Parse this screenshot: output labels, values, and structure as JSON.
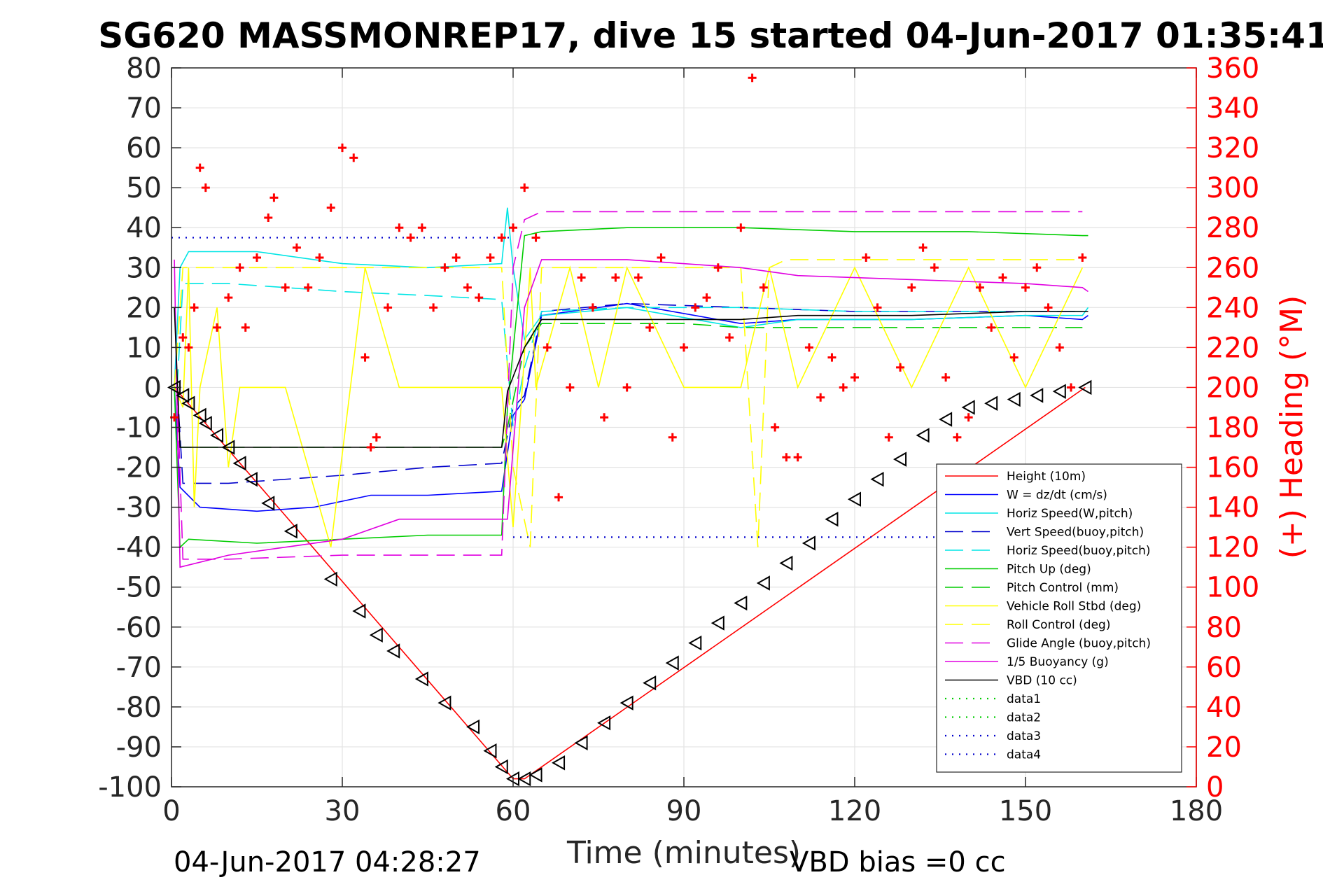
{
  "chart_data": {
    "type": "line",
    "title": "SG620 MASSMONREP17, dive 15 started 04-Jun-2017 01:35:41",
    "xlabel": "Time (minutes)",
    "ylabel_right": "(+) Heading (°M)",
    "xlim": [
      0,
      180
    ],
    "ylim_left": [
      -100,
      80
    ],
    "ylim_right": [
      0,
      360
    ],
    "x_ticks": [
      "0",
      "30",
      "60",
      "90",
      "120",
      "150",
      "180"
    ],
    "y_left_ticks": [
      "80",
      "70",
      "60",
      "50",
      "40",
      "30",
      "20",
      "10",
      "0",
      "-10",
      "-20",
      "-30",
      "-40",
      "-50",
      "-60",
      "-70",
      "-80",
      "-90",
      "-100"
    ],
    "y_right_ticks": [
      "360",
      "340",
      "320",
      "300",
      "280",
      "260",
      "240",
      "220",
      "200",
      "180",
      "160",
      "140",
      "120",
      "100",
      "80",
      "60",
      "40",
      "20",
      "0"
    ],
    "grid": true,
    "legend_position": "lower-right",
    "footer_left": "04-Jun-2017 04:28:27",
    "footer_right": "VBD bias =0 cc",
    "series": [
      {
        "name": "Height (10m)",
        "color": "#ff0000",
        "style": "solid",
        "x": [
          0.5,
          60,
          62,
          160.5
        ],
        "y": [
          0,
          -98,
          -98,
          0
        ]
      },
      {
        "name": "W = dz/dt (cm/s)",
        "color": "#0000ff",
        "style": "solid",
        "x": [
          0.5,
          1.5,
          5,
          15,
          25,
          35,
          45,
          58,
          60,
          62,
          65,
          80,
          100,
          110,
          130,
          150,
          160,
          161
        ],
        "y": [
          0,
          -25,
          -30,
          -31,
          -30,
          -27,
          -27,
          -26,
          -7,
          -3,
          18,
          21,
          16,
          17,
          17,
          18,
          17,
          18
        ]
      },
      {
        "name": "Horiz Speed(W,pitch)",
        "color": "#00e5e5",
        "style": "solid",
        "x": [
          0.5,
          1.5,
          3,
          15,
          30,
          45,
          58,
          59,
          60,
          62,
          65,
          80,
          100,
          110,
          130,
          150,
          160,
          161
        ],
        "y": [
          0,
          30,
          34,
          34,
          31,
          30,
          31,
          45,
          30,
          12,
          18,
          20,
          15,
          17,
          17,
          18,
          18,
          20
        ]
      },
      {
        "name": "Vert Speed(buoy,pitch)",
        "color": "#0000cc",
        "style": "dashed",
        "x": [
          1,
          2,
          10,
          30,
          45,
          58,
          60,
          62,
          65,
          80,
          100,
          120,
          140,
          160
        ],
        "y": [
          0,
          -24,
          -24,
          -22,
          -20,
          -19,
          -5,
          -2,
          19,
          21,
          20,
          19,
          19,
          19
        ]
      },
      {
        "name": "Horiz Speed(buoy,pitch)",
        "color": "#00e5e5",
        "style": "dashed",
        "x": [
          1,
          2,
          10,
          30,
          45,
          58,
          60,
          62,
          65,
          80,
          100,
          120,
          140,
          160
        ],
        "y": [
          0,
          26,
          26,
          24,
          23,
          22,
          -10,
          5,
          19,
          20,
          20,
          19,
          19,
          19
        ]
      },
      {
        "name": "Pitch Up (deg)",
        "color": "#00cc00",
        "style": "solid",
        "x": [
          0.5,
          1.5,
          3,
          15,
          30,
          45,
          58,
          59,
          62,
          65,
          80,
          100,
          120,
          140,
          160,
          161
        ],
        "y": [
          0,
          -40,
          -38,
          -39,
          -38,
          -37,
          -37,
          -5,
          38,
          39,
          40,
          40,
          39,
          39,
          38,
          38
        ]
      },
      {
        "name": "Pitch Control (mm)",
        "color": "#00cc00",
        "style": "dashed",
        "x": [
          1,
          1.5,
          58,
          59,
          62,
          65,
          90,
          100,
          160
        ],
        "y": [
          0,
          -15,
          -15,
          -10,
          10,
          16,
          16,
          15,
          15
        ]
      },
      {
        "name": "Vehicle Roll Stbd (deg)",
        "color": "#ffff00",
        "style": "solid",
        "x": [
          0.5,
          2,
          3,
          4,
          5,
          8,
          10,
          12,
          20,
          28,
          34,
          40,
          50,
          58,
          60,
          63,
          64,
          70,
          75,
          80,
          90,
          100,
          105,
          110,
          120,
          130,
          140,
          150,
          160
        ],
        "y": [
          0,
          -5,
          30,
          -30,
          0,
          20,
          -20,
          0,
          0,
          -40,
          30,
          0,
          0,
          0,
          -35,
          30,
          0,
          30,
          0,
          30,
          0,
          0,
          30,
          0,
          30,
          0,
          30,
          0,
          30
        ]
      },
      {
        "name": "Roll Control (deg)",
        "color": "#ffff00",
        "style": "dashed",
        "x": [
          0.5,
          2,
          58,
          60,
          63,
          65,
          100,
          103,
          105,
          108,
          120,
          140,
          160
        ],
        "y": [
          0,
          30,
          30,
          -20,
          -40,
          30,
          30,
          -40,
          30,
          32,
          32,
          32,
          32
        ]
      },
      {
        "name": "Glide Angle (buoy,pitch)",
        "color": "#e000e0",
        "style": "dashed",
        "x": [
          1,
          2,
          10,
          30,
          45,
          58,
          60,
          62,
          65,
          80,
          100,
          120,
          140,
          160
        ],
        "y": [
          0,
          -43,
          -43,
          -42,
          -42,
          -42,
          30,
          42,
          44,
          44,
          44,
          44,
          44,
          44
        ]
      },
      {
        "name": "1/5 Buoyancy (g)",
        "color": "#e000e0",
        "style": "solid",
        "x": [
          0.5,
          1.5,
          10,
          30,
          40,
          58,
          59,
          62,
          65,
          80,
          100,
          110,
          130,
          150,
          160,
          161
        ],
        "y": [
          32,
          -45,
          -42,
          -38,
          -33,
          -33,
          -33,
          20,
          32,
          32,
          30,
          28,
          27,
          26,
          25,
          24
        ]
      },
      {
        "name": "VBD (10 cc)",
        "color": "#000000",
        "style": "solid",
        "x": [
          0.5,
          1.5,
          58,
          59,
          62,
          65,
          80,
          100,
          110,
          130,
          150,
          160,
          161
        ],
        "y": [
          20,
          -15,
          -15,
          -1,
          10,
          17,
          17,
          17,
          18,
          18,
          19,
          19,
          19
        ]
      },
      {
        "name": "data1",
        "color": "#00cc00",
        "style": "dotted",
        "x": [],
        "y": []
      },
      {
        "name": "data2",
        "color": "#00cc00",
        "style": "dotted",
        "x": [],
        "y": []
      },
      {
        "name": "data3",
        "color": "#0000cc",
        "style": "dotted",
        "x": [
          0,
          60
        ],
        "y": [
          37.5,
          37.5
        ]
      },
      {
        "name": "data4",
        "color": "#0000cc",
        "style": "dotted",
        "x": [
          60,
          162
        ],
        "y": [
          -37.5,
          -37.5
        ]
      }
    ],
    "heading_points": {
      "axis": "right",
      "marker": "+",
      "color": "#ff0000",
      "x": [
        0.5,
        2,
        3,
        4,
        5,
        6,
        8,
        10,
        12,
        13,
        15,
        17,
        18,
        20,
        22,
        24,
        26,
        28,
        30,
        32,
        34,
        35,
        36,
        38,
        40,
        42,
        44,
        46,
        48,
        50,
        52,
        54,
        56,
        58,
        60,
        62,
        64,
        66,
        68,
        70,
        72,
        74,
        76,
        78,
        80,
        82,
        84,
        86,
        88,
        90,
        92,
        94,
        96,
        98,
        100,
        102,
        104,
        106,
        108,
        110,
        112,
        114,
        116,
        118,
        120,
        122,
        124,
        126,
        128,
        130,
        132,
        134,
        136,
        138,
        140,
        142,
        144,
        146,
        148,
        150,
        152,
        154,
        156,
        158,
        160
      ],
      "y": [
        185,
        225,
        220,
        240,
        310,
        300,
        230,
        245,
        260,
        230,
        265,
        285,
        295,
        250,
        270,
        250,
        265,
        290,
        320,
        315,
        215,
        170,
        175,
        240,
        280,
        275,
        280,
        240,
        260,
        265,
        250,
        245,
        265,
        275,
        280,
        300,
        275,
        220,
        145,
        200,
        255,
        240,
        185,
        255,
        200,
        255,
        230,
        265,
        175,
        220,
        240,
        245,
        260,
        225,
        280,
        355,
        250,
        180,
        165,
        165,
        220,
        195,
        215,
        200,
        205,
        265,
        240,
        175,
        210,
        250,
        270,
        260,
        205,
        175,
        185,
        250,
        230,
        255,
        215,
        250,
        260,
        240,
        220,
        200,
        265
      ]
    },
    "depth_markers": {
      "marker": "triangle-left",
      "color": "#000000",
      "x": [
        0.5,
        2,
        3,
        5,
        6,
        8,
        10,
        12,
        14,
        17,
        21,
        28,
        33,
        36,
        39,
        44,
        48,
        53,
        56,
        58,
        60,
        62,
        64,
        68,
        72,
        76,
        80,
        84,
        88,
        92,
        96,
        100,
        104,
        108,
        112,
        116,
        120,
        124,
        128,
        132,
        136,
        140,
        144,
        148,
        152,
        156,
        160.5
      ],
      "y": [
        0,
        -2,
        -4,
        -7,
        -9,
        -12,
        -15,
        -19,
        -23,
        -29,
        -36,
        -48,
        -56,
        -62,
        -66,
        -73,
        -79,
        -85,
        -91,
        -95,
        -98,
        -98,
        -97,
        -94,
        -89,
        -84,
        -79,
        -74,
        -69,
        -64,
        -59,
        -54,
        -49,
        -44,
        -39,
        -33,
        -28,
        -23,
        -18,
        -12,
        -8,
        -5,
        -4,
        -3,
        -2,
        -1,
        0
      ]
    }
  }
}
